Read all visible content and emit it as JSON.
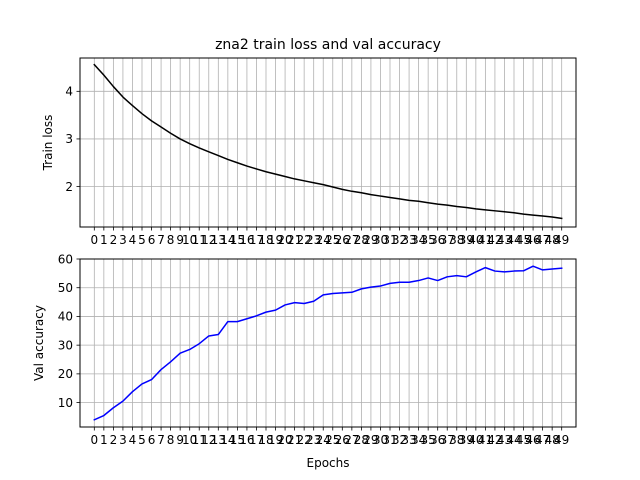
{
  "chart_data": [
    {
      "type": "line",
      "title": "zna2 train loss and val accuracy",
      "xlabel": "",
      "ylabel": "Train loss",
      "grid": true,
      "x": [
        0,
        1,
        2,
        3,
        4,
        5,
        6,
        7,
        8,
        9,
        10,
        11,
        12,
        13,
        14,
        15,
        16,
        17,
        18,
        19,
        20,
        21,
        22,
        23,
        24,
        25,
        26,
        27,
        28,
        29,
        30,
        31,
        32,
        33,
        34,
        35,
        36,
        37,
        38,
        39,
        40,
        41,
        42,
        43,
        44,
        45,
        46,
        47,
        48,
        49
      ],
      "x_tick_labels": [
        "0",
        "1",
        "2",
        "3",
        "4",
        "5",
        "6",
        "7",
        "8",
        "9",
        "10",
        "11",
        "12",
        "13",
        "14",
        "15",
        "16",
        "17",
        "18",
        "19",
        "20",
        "21",
        "22",
        "23",
        "24",
        "25",
        "26",
        "27",
        "28",
        "29",
        "30",
        "31",
        "32",
        "33",
        "34",
        "35",
        "36",
        "37",
        "38",
        "39",
        "40",
        "41",
        "42",
        "43",
        "44",
        "45",
        "46",
        "47",
        "48",
        "49"
      ],
      "xlim": [
        -1.5,
        50.5
      ],
      "y_ticks": [
        2,
        3,
        4
      ],
      "y_tick_labels": [
        "2",
        "3",
        "4"
      ],
      "ylim": [
        1.15,
        4.7
      ],
      "series": [
        {
          "color": "#000000",
          "values": [
            4.56,
            4.34,
            4.1,
            3.88,
            3.7,
            3.53,
            3.38,
            3.25,
            3.12,
            3.0,
            2.9,
            2.81,
            2.73,
            2.65,
            2.57,
            2.5,
            2.43,
            2.37,
            2.31,
            2.26,
            2.21,
            2.16,
            2.12,
            2.08,
            2.04,
            1.99,
            1.94,
            1.9,
            1.87,
            1.83,
            1.8,
            1.77,
            1.74,
            1.71,
            1.69,
            1.66,
            1.63,
            1.61,
            1.58,
            1.56,
            1.53,
            1.51,
            1.49,
            1.47,
            1.45,
            1.42,
            1.4,
            1.38,
            1.36,
            1.33
          ]
        }
      ]
    },
    {
      "type": "line",
      "title": "",
      "xlabel": "Epochs",
      "ylabel": "Val accuracy",
      "grid": true,
      "x": [
        0,
        1,
        2,
        3,
        4,
        5,
        6,
        7,
        8,
        9,
        10,
        11,
        12,
        13,
        14,
        15,
        16,
        17,
        18,
        19,
        20,
        21,
        22,
        23,
        24,
        25,
        26,
        27,
        28,
        29,
        30,
        31,
        32,
        33,
        34,
        35,
        36,
        37,
        38,
        39,
        40,
        41,
        42,
        43,
        44,
        45,
        46,
        47,
        48,
        49
      ],
      "x_tick_labels": [
        "0",
        "1",
        "2",
        "3",
        "4",
        "5",
        "6",
        "7",
        "8",
        "9",
        "10",
        "11",
        "12",
        "13",
        "14",
        "15",
        "16",
        "17",
        "18",
        "19",
        "20",
        "21",
        "22",
        "23",
        "24",
        "25",
        "26",
        "27",
        "28",
        "29",
        "30",
        "31",
        "32",
        "33",
        "34",
        "35",
        "36",
        "37",
        "38",
        "39",
        "40",
        "41",
        "42",
        "43",
        "44",
        "45",
        "46",
        "47",
        "48",
        "49"
      ],
      "xlim": [
        -1.5,
        50.5
      ],
      "y_ticks": [
        10,
        20,
        30,
        40,
        50,
        60
      ],
      "y_tick_labels": [
        "10",
        "20",
        "30",
        "40",
        "50",
        "60"
      ],
      "ylim": [
        1.5,
        60
      ],
      "series": [
        {
          "color": "#0000ff",
          "values": [
            4.0,
            5.5,
            8.2,
            10.5,
            13.8,
            16.5,
            18.0,
            21.5,
            24.2,
            27.2,
            28.5,
            30.5,
            33.2,
            33.7,
            38.2,
            38.2,
            39.2,
            40.2,
            41.5,
            42.2,
            44.0,
            44.8,
            44.5,
            45.3,
            47.5,
            48.0,
            48.2,
            48.4,
            49.6,
            50.2,
            50.6,
            51.5,
            51.9,
            51.9,
            52.5,
            53.4,
            52.5,
            53.8,
            54.2,
            53.8,
            55.5,
            57.0,
            55.8,
            55.5,
            55.8,
            55.9,
            57.5,
            56.2,
            56.5,
            56.8
          ]
        }
      ]
    }
  ]
}
